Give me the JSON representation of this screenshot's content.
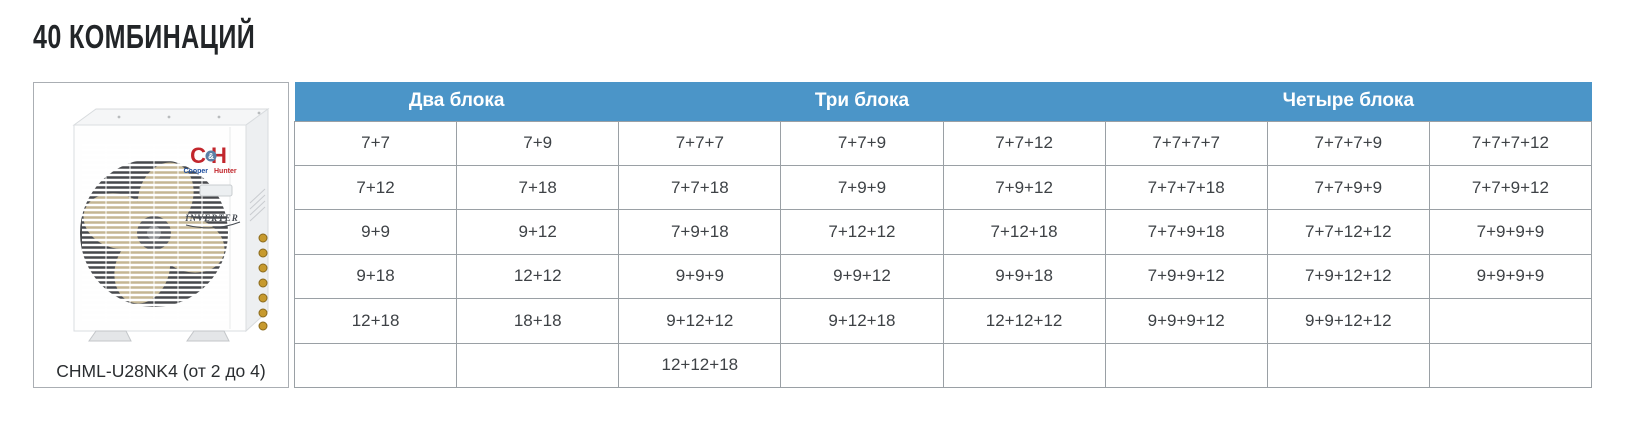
{
  "page": {
    "title": "40 КОМБИНАЦИЙ"
  },
  "product": {
    "model_caption": "CHML-U28NK4 (от 2 до 4)",
    "logo": {
      "main": "CH",
      "amp": "&",
      "cooper": "Cooper",
      "hunter": "Hunter"
    },
    "badge": "INVERTER"
  },
  "table": {
    "header_groups": [
      {
        "label": "Два блока",
        "colspan": 2
      },
      {
        "label": "Три блока",
        "colspan": 3
      },
      {
        "label": "Четыре блока",
        "colspan": 3
      }
    ],
    "rows": [
      [
        "7+7",
        "7+9",
        "7+7+7",
        "7+7+9",
        "7+7+12",
        "7+7+7+7",
        "7+7+7+9",
        "7+7+7+12"
      ],
      [
        "7+12",
        "7+18",
        "7+7+18",
        "7+9+9",
        "7+9+12",
        "7+7+7+18",
        "7+7+9+9",
        "7+7+9+12"
      ],
      [
        "9+9",
        "9+12",
        "7+9+18",
        "7+12+12",
        "7+12+18",
        "7+7+9+18",
        "7+7+12+12",
        "7+9+9+9"
      ],
      [
        "9+18",
        "12+12",
        "9+9+9",
        "9+9+12",
        "9+9+18",
        "7+9+9+12",
        "7+9+12+12",
        "9+9+9+9"
      ],
      [
        "12+18",
        "18+18",
        "9+12+12",
        "9+12+18",
        "12+12+12",
        "9+9+9+12",
        "9+9+12+12",
        ""
      ],
      [
        "",
        "",
        "12+12+18",
        "",
        "",
        "",
        "",
        ""
      ]
    ]
  },
  "colors": {
    "header_blue": "#4b95c8",
    "header_text": "#ffffff",
    "grid_border": "#9aa0a5",
    "cell_text": "#3e4246",
    "title_text": "#222528",
    "logo_red": "#c2262c",
    "logo_blue": "#1d4e9e",
    "brass": "#c79a2e"
  }
}
